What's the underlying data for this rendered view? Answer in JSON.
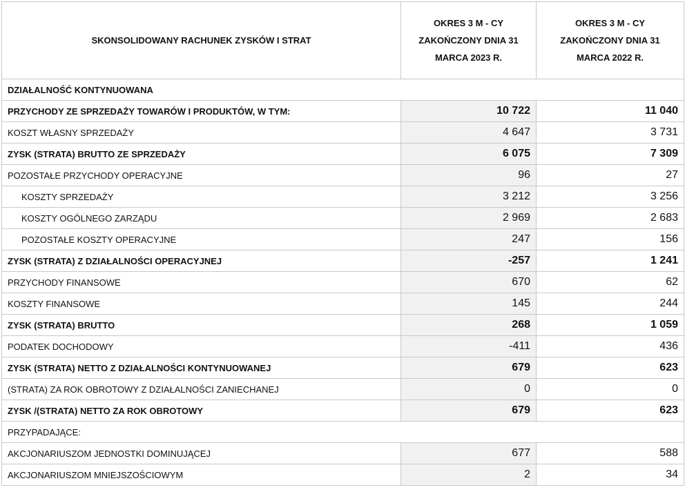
{
  "table": {
    "header": [
      "SKONSOLIDOWANY RACHUNEK ZYSKÓW I STRAT",
      "OKRES 3 M - CY ZAKOŃCZONY DNIA 31 MARCA 2023 R.",
      "OKRES 3 M - CY ZAKOŃCZONY DNIA 31 MARCA 2022 R."
    ],
    "rows": [
      [
        "DZIAŁALNOŚĆ KONTYNUOWANA"
      ],
      [
        "PRZYCHODY ZE SPRZEDAŻY TOWARÓW I PRODUKTÓW, W TYM:",
        "10 722",
        "11 040"
      ],
      [
        "KOSZT WŁASNY SPRZEDAŻY",
        "4 647",
        "3 731"
      ],
      [
        "ZYSK (STRATA) BRUTTO ZE SPRZEDAŻY",
        "6 075",
        "7 309"
      ],
      [
        "POZOSTAŁE PRZYCHODY OPERACYJNE",
        "96",
        "27"
      ],
      [
        "KOSZTY SPRZEDAŻY",
        "3 212",
        "3 256"
      ],
      [
        "KOSZTY OGÓLNEGO ZARZĄDU",
        "2 969",
        "2 683"
      ],
      [
        "POZOSTAŁE KOSZTY OPERACYJNE",
        "247",
        "156"
      ],
      [
        "ZYSK (STRATA) Z DZIAŁALNOŚCI OPERACYJNEJ",
        "-257",
        "1 241"
      ],
      [
        "PRZYCHODY FINANSOWE",
        "670",
        "62"
      ],
      [
        "KOSZTY FINANSOWE",
        "145",
        "244"
      ],
      [
        "ZYSK (STRATA) BRUTTO",
        "268",
        "1 059"
      ],
      [
        "PODATEK DOCHODOWY",
        "-411",
        "436"
      ],
      [
        "ZYSK (STRATA) NETTO Z DZIAŁALNOŚCI KONTYNUOWANEJ",
        "679",
        "623"
      ],
      [
        "(STRATA) ZA ROK OBROTOWY Z DZIAŁALNOŚCI ZANIECHANEJ",
        "0",
        "0"
      ],
      [
        "ZYSK /(STRATA) NETTO ZA ROK OBROTOWY",
        "679",
        "623"
      ],
      [
        "PRZYPADAJĄCE:"
      ],
      [
        "AKCJONARIUSZOM JEDNOSTKI DOMINUJĄCEJ",
        "677",
        "588"
      ],
      [
        "AKCJONARIUSZOM MNIEJSZOŚCIOWYM",
        "2",
        "34"
      ]
    ]
  }
}
